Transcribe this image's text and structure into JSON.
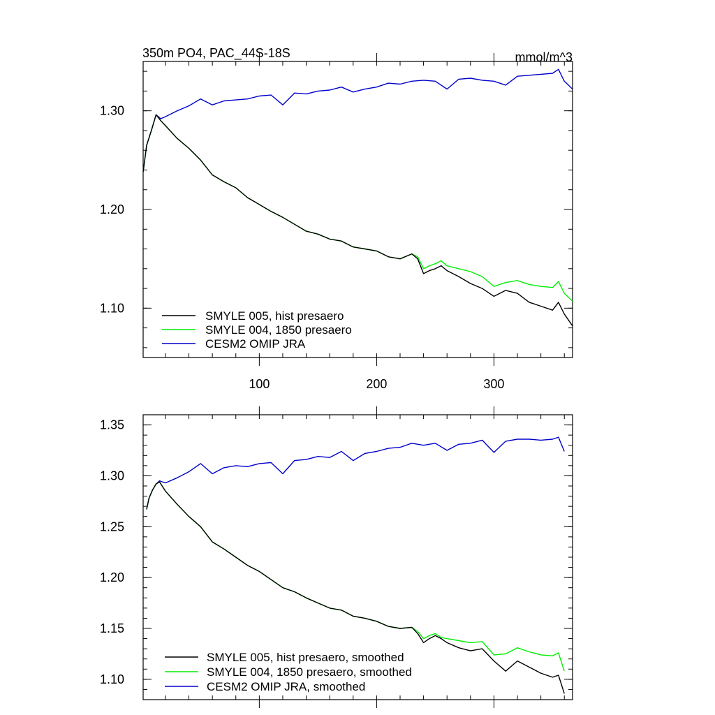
{
  "chart_data": [
    {
      "type": "line",
      "title_left": "350m PO4, PAC_44S-18S",
      "title_right": "mmol/m^3",
      "xlabel": "",
      "ylabel": "",
      "xlim": [
        1,
        367
      ],
      "ylim": [
        1.05,
        1.35
      ],
      "y_ticks": [
        1.1,
        1.2,
        1.3
      ],
      "y_tick_labels": [
        "1.10",
        "1.20",
        "1.30"
      ],
      "y_minor_step": 0.02,
      "x_ticks": [
        100,
        200,
        300
      ],
      "x_tick_labels": [
        "100",
        "200",
        "300"
      ],
      "x_minor_step": 20,
      "x_labels_below_axis": true,
      "legend_position": "bottom-left",
      "series": [
        {
          "name": "SMYLE 005, hist presaero",
          "color": "#000000",
          "x": [
            1,
            4,
            8,
            12,
            16,
            20,
            30,
            40,
            50,
            60,
            70,
            80,
            90,
            100,
            110,
            120,
            130,
            140,
            150,
            160,
            170,
            180,
            190,
            200,
            210,
            220,
            230,
            235,
            240,
            245,
            250,
            255,
            260,
            270,
            280,
            290,
            300,
            310,
            320,
            330,
            340,
            350,
            355,
            360,
            367
          ],
          "y": [
            1.238,
            1.265,
            1.28,
            1.296,
            1.29,
            1.285,
            1.272,
            1.262,
            1.25,
            1.235,
            1.228,
            1.222,
            1.212,
            1.205,
            1.198,
            1.192,
            1.185,
            1.178,
            1.175,
            1.17,
            1.168,
            1.162,
            1.16,
            1.158,
            1.152,
            1.15,
            1.155,
            1.15,
            1.135,
            1.138,
            1.14,
            1.143,
            1.138,
            1.132,
            1.125,
            1.12,
            1.112,
            1.118,
            1.115,
            1.106,
            1.102,
            1.098,
            1.106,
            1.094,
            1.082
          ]
        },
        {
          "name": "SMYLE 004, 1850 presaero",
          "color": "#00ee00",
          "x": [
            1,
            4,
            8,
            12,
            16,
            20,
            30,
            40,
            50,
            60,
            70,
            80,
            90,
            100,
            110,
            120,
            130,
            140,
            150,
            160,
            170,
            180,
            190,
            200,
            210,
            220,
            230,
            235,
            240,
            245,
            250,
            255,
            260,
            270,
            280,
            290,
            300,
            310,
            320,
            330,
            340,
            350,
            355,
            360,
            367
          ],
          "y": [
            1.238,
            1.265,
            1.28,
            1.296,
            1.29,
            1.285,
            1.272,
            1.262,
            1.25,
            1.235,
            1.228,
            1.222,
            1.212,
            1.205,
            1.198,
            1.192,
            1.185,
            1.178,
            1.175,
            1.17,
            1.168,
            1.162,
            1.16,
            1.158,
            1.152,
            1.15,
            1.155,
            1.152,
            1.14,
            1.143,
            1.145,
            1.148,
            1.143,
            1.14,
            1.137,
            1.132,
            1.122,
            1.126,
            1.128,
            1.124,
            1.122,
            1.121,
            1.127,
            1.115,
            1.107
          ]
        },
        {
          "name": "CESM2 OMIP JRA",
          "color": "#0000cc",
          "x": [
            1,
            4,
            8,
            12,
            16,
            20,
            30,
            40,
            50,
            60,
            70,
            80,
            90,
            100,
            110,
            120,
            130,
            140,
            150,
            160,
            170,
            180,
            190,
            200,
            210,
            220,
            230,
            240,
            250,
            260,
            270,
            280,
            290,
            300,
            310,
            320,
            330,
            340,
            350,
            355,
            360,
            367
          ],
          "y": [
            1.238,
            1.265,
            1.28,
            1.296,
            1.292,
            1.294,
            1.3,
            1.305,
            1.312,
            1.306,
            1.31,
            1.311,
            1.312,
            1.315,
            1.316,
            1.306,
            1.318,
            1.317,
            1.32,
            1.321,
            1.324,
            1.319,
            1.322,
            1.324,
            1.328,
            1.327,
            1.33,
            1.331,
            1.33,
            1.322,
            1.332,
            1.333,
            1.331,
            1.33,
            1.326,
            1.335,
            1.336,
            1.337,
            1.338,
            1.342,
            1.33,
            1.322
          ]
        }
      ]
    },
    {
      "type": "line",
      "title_left": "",
      "title_right": "",
      "xlabel": "",
      "ylabel": "",
      "xlim": [
        1,
        367
      ],
      "ylim": [
        1.08,
        1.36
      ],
      "y_ticks": [
        1.1,
        1.15,
        1.2,
        1.25,
        1.3,
        1.35
      ],
      "y_tick_labels": [
        "1.10",
        "1.15",
        "1.20",
        "1.25",
        "1.30",
        "1.35"
      ],
      "y_minor_step": 0.01,
      "x_ticks": [
        100,
        200,
        300
      ],
      "x_tick_labels": [],
      "x_minor_step": 20,
      "x_labels_below_axis": false,
      "legend_position": "bottom-left",
      "series": [
        {
          "name": "SMYLE 005, hist presaero, smoothed",
          "color": "#000000",
          "x": [
            4,
            6,
            9,
            12,
            15,
            20,
            30,
            40,
            50,
            60,
            70,
            80,
            90,
            100,
            110,
            120,
            130,
            140,
            150,
            160,
            170,
            180,
            190,
            200,
            210,
            220,
            230,
            235,
            240,
            245,
            250,
            255,
            260,
            270,
            280,
            290,
            300,
            310,
            320,
            330,
            340,
            350,
            355,
            360
          ],
          "y": [
            1.267,
            1.278,
            1.286,
            1.292,
            1.294,
            1.285,
            1.272,
            1.26,
            1.25,
            1.235,
            1.228,
            1.22,
            1.212,
            1.206,
            1.198,
            1.19,
            1.186,
            1.18,
            1.175,
            1.17,
            1.168,
            1.162,
            1.16,
            1.157,
            1.152,
            1.15,
            1.151,
            1.145,
            1.136,
            1.14,
            1.143,
            1.14,
            1.136,
            1.131,
            1.128,
            1.13,
            1.118,
            1.108,
            1.118,
            1.112,
            1.106,
            1.102,
            1.104,
            1.086
          ]
        },
        {
          "name": "SMYLE 004, 1850 presaero, smoothed",
          "color": "#00ee00",
          "x": [
            4,
            6,
            9,
            12,
            15,
            20,
            30,
            40,
            50,
            60,
            70,
            80,
            90,
            100,
            110,
            120,
            130,
            140,
            150,
            160,
            170,
            180,
            190,
            200,
            210,
            220,
            230,
            235,
            240,
            245,
            250,
            255,
            260,
            270,
            280,
            290,
            300,
            310,
            320,
            330,
            340,
            350,
            355,
            360
          ],
          "y": [
            1.267,
            1.278,
            1.286,
            1.292,
            1.294,
            1.285,
            1.272,
            1.26,
            1.25,
            1.235,
            1.228,
            1.22,
            1.212,
            1.206,
            1.198,
            1.19,
            1.186,
            1.18,
            1.175,
            1.17,
            1.168,
            1.162,
            1.16,
            1.157,
            1.152,
            1.15,
            1.151,
            1.147,
            1.14,
            1.143,
            1.145,
            1.141,
            1.14,
            1.138,
            1.136,
            1.137,
            1.124,
            1.125,
            1.131,
            1.127,
            1.124,
            1.123,
            1.126,
            1.108
          ]
        },
        {
          "name": "CESM2 OMIP JRA, smoothed",
          "color": "#0000cc",
          "x": [
            4,
            6,
            9,
            12,
            15,
            20,
            30,
            40,
            50,
            60,
            70,
            80,
            90,
            100,
            110,
            120,
            130,
            140,
            150,
            160,
            170,
            180,
            190,
            200,
            210,
            220,
            230,
            240,
            250,
            260,
            270,
            280,
            290,
            300,
            310,
            320,
            330,
            340,
            350,
            355,
            360
          ],
          "y": [
            1.267,
            1.278,
            1.286,
            1.292,
            1.295,
            1.293,
            1.298,
            1.304,
            1.312,
            1.302,
            1.308,
            1.31,
            1.309,
            1.312,
            1.313,
            1.302,
            1.315,
            1.316,
            1.319,
            1.318,
            1.324,
            1.315,
            1.322,
            1.324,
            1.327,
            1.328,
            1.332,
            1.33,
            1.332,
            1.325,
            1.331,
            1.332,
            1.335,
            1.323,
            1.334,
            1.336,
            1.336,
            1.335,
            1.336,
            1.338,
            1.324
          ]
        }
      ]
    }
  ]
}
